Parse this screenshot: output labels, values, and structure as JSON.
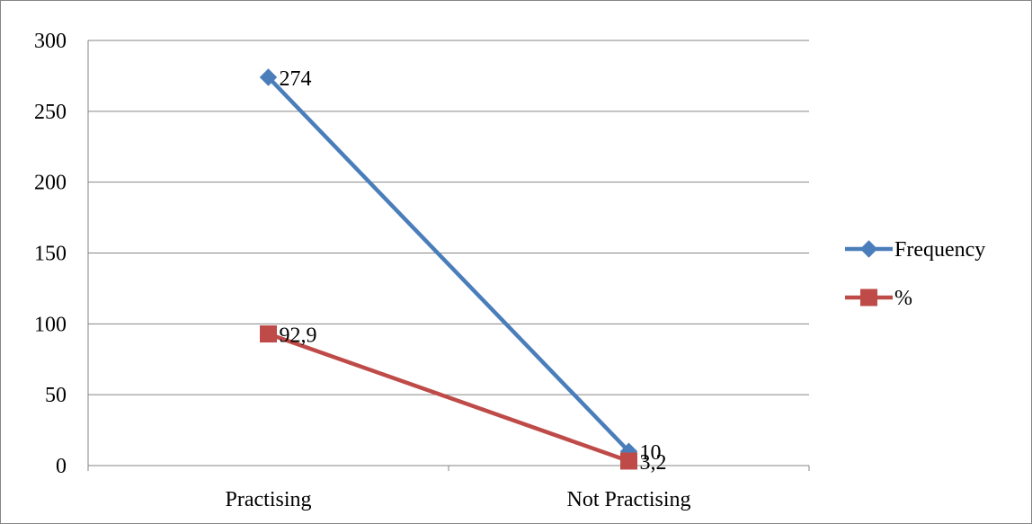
{
  "chart_data": {
    "type": "line",
    "categories": [
      "Practising",
      "Not Practising"
    ],
    "series": [
      {
        "name": "Frequency",
        "values": [
          274,
          10
        ],
        "labels": [
          "274",
          "10"
        ],
        "color": "#4a7ebb",
        "marker": "diamond"
      },
      {
        "name": "%",
        "values": [
          92.9,
          3.2
        ],
        "labels": [
          "92,9",
          "3,2"
        ],
        "color": "#be4b48",
        "marker": "square"
      }
    ],
    "ylim": [
      0,
      300
    ],
    "yticks": [
      0,
      50,
      100,
      150,
      200,
      250,
      300
    ],
    "grid": true,
    "legend": "right",
    "title": "",
    "xlabel": "",
    "ylabel": ""
  }
}
